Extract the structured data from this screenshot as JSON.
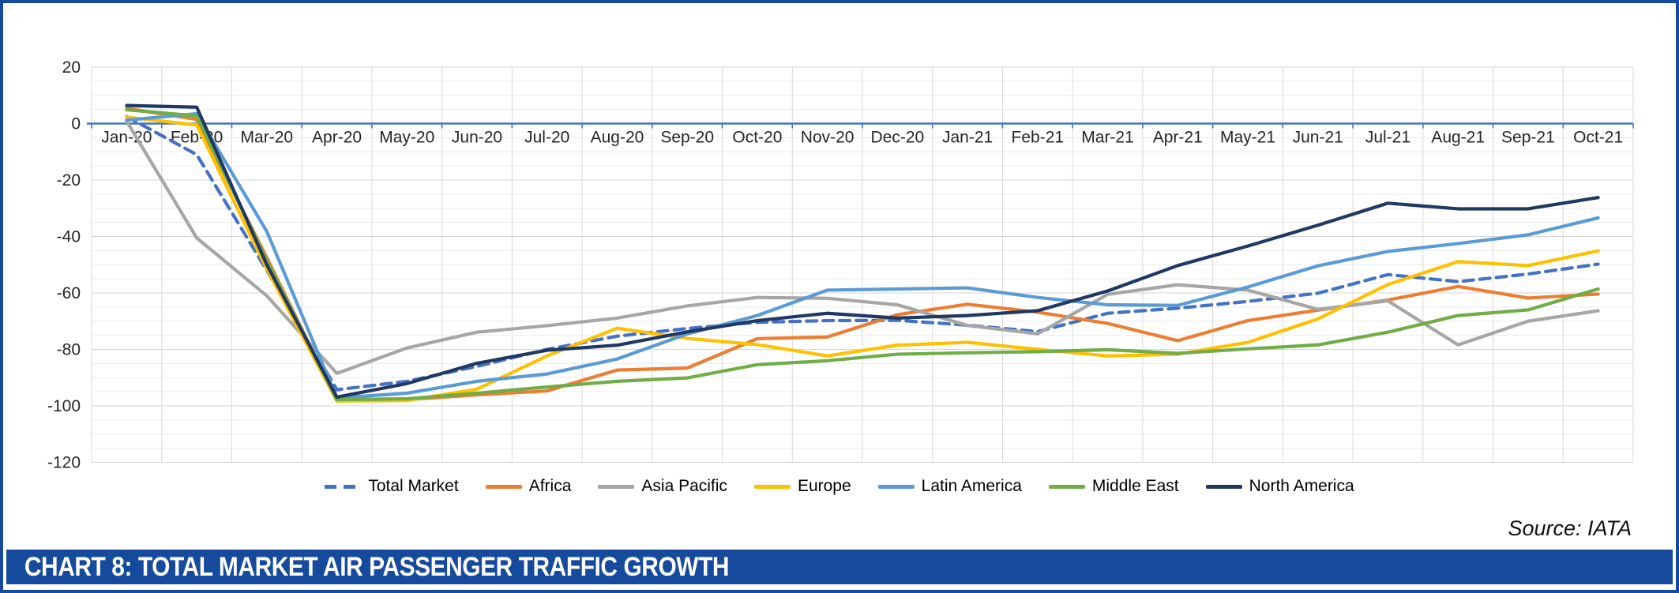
{
  "chart": {
    "title_bar": {
      "text": "CHART 8: TOTAL MARKET AIR PASSENGER TRAFFIC GROWTH",
      "background_color": "#164A9C",
      "text_color": "#FFFFFF"
    },
    "source_note": "Source: IATA",
    "zero_axis_color": "#4472C4"
  },
  "chart_data": {
    "type": "line",
    "title": "CHART 8: TOTAL MARKET AIR PASSENGER TRAFFIC GROWTH",
    "xlabel": "",
    "ylabel": "",
    "ylim": [
      -120,
      20
    ],
    "y_ticks": [
      20,
      0,
      -20,
      -40,
      -60,
      -80,
      -100,
      -120
    ],
    "y_minor_grid_step": 5,
    "grid": "horizontal minor+major, vertical per month",
    "legend_position": "bottom",
    "categories": [
      "Jan-20",
      "Feb-20",
      "Mar-20",
      "Apr-20",
      "May-20",
      "Jun-20",
      "Jul-20",
      "Aug-20",
      "Sep-20",
      "Oct-20",
      "Nov-20",
      "Dec-20",
      "Jan-21",
      "Feb-21",
      "Mar-21",
      "Apr-21",
      "May-21",
      "Jun-21",
      "Jul-21",
      "Aug-21",
      "Sep-21",
      "Oct-21"
    ],
    "series": [
      {
        "name": "Total Market",
        "color": "#4472C4",
        "dashed": true,
        "values": [
          2.5,
          -11.0,
          -52.0,
          -94.3,
          -91.3,
          -86.0,
          -80.0,
          -75.3,
          -72.6,
          -70.4,
          -69.8,
          -69.7,
          -71.4,
          -73.7,
          -67.2,
          -65.4,
          -63.0,
          -60.1,
          -53.5,
          -56.0,
          -53.3,
          -49.8
        ]
      },
      {
        "name": "Africa",
        "color": "#ED7D31",
        "dashed": false,
        "values": [
          5.4,
          1.5,
          -47.5,
          -98.0,
          -97.8,
          -96.1,
          -94.7,
          -87.3,
          -86.6,
          -76.2,
          -75.6,
          -67.7,
          -64.0,
          -66.8,
          -70.8,
          -76.9,
          -69.8,
          -66.1,
          -62.5,
          -57.7,
          -61.8,
          -60.4
        ]
      },
      {
        "name": "Asia Pacific",
        "color": "#A6A6A6",
        "dashed": false,
        "values": [
          0.8,
          -40.5,
          -61.0,
          -88.5,
          -79.5,
          -73.9,
          -71.6,
          -68.9,
          -64.6,
          -61.6,
          -61.9,
          -64.2,
          -71.5,
          -74.5,
          -60.5,
          -57.1,
          -59.0,
          -65.8,
          -62.8,
          -78.4,
          -70.0,
          -66.3
        ]
      },
      {
        "name": "Europe",
        "color": "#FFC000",
        "dashed": false,
        "values": [
          2.3,
          -0.5,
          -51.5,
          -98.3,
          -98.1,
          -94.1,
          -82.3,
          -72.5,
          -76.1,
          -78.3,
          -82.3,
          -78.5,
          -77.5,
          -80.0,
          -82.3,
          -81.7,
          -77.5,
          -69.2,
          -57.0,
          -48.9,
          -50.3,
          -45.1
        ]
      },
      {
        "name": "Latin America",
        "color": "#5B9BD5",
        "dashed": false,
        "values": [
          1.2,
          3.5,
          -38.2,
          -97.2,
          -95.5,
          -91.3,
          -88.7,
          -83.4,
          -74.5,
          -68.0,
          -59.0,
          -58.6,
          -58.2,
          -61.6,
          -64.2,
          -64.4,
          -57.9,
          -50.4,
          -45.3,
          -42.5,
          -39.4,
          -33.4
        ]
      },
      {
        "name": "Middle East",
        "color": "#70AD47",
        "dashed": false,
        "values": [
          4.9,
          2.7,
          -48.5,
          -97.8,
          -97.5,
          -95.5,
          -93.3,
          -91.3,
          -90.1,
          -85.4,
          -84.0,
          -81.7,
          -81.2,
          -80.8,
          -80.1,
          -81.4,
          -79.8,
          -78.4,
          -73.9,
          -68.0,
          -66.0,
          -58.6
        ]
      },
      {
        "name": "North America",
        "color": "#203864",
        "dashed": false,
        "values": [
          6.4,
          5.8,
          -50.0,
          -96.9,
          -92.1,
          -84.9,
          -80.3,
          -78.5,
          -73.8,
          -69.8,
          -67.2,
          -68.9,
          -68.0,
          -66.3,
          -59.3,
          -50.3,
          -43.4,
          -36.0,
          -28.2,
          -30.2,
          -30.2,
          -26.2
        ]
      }
    ]
  }
}
